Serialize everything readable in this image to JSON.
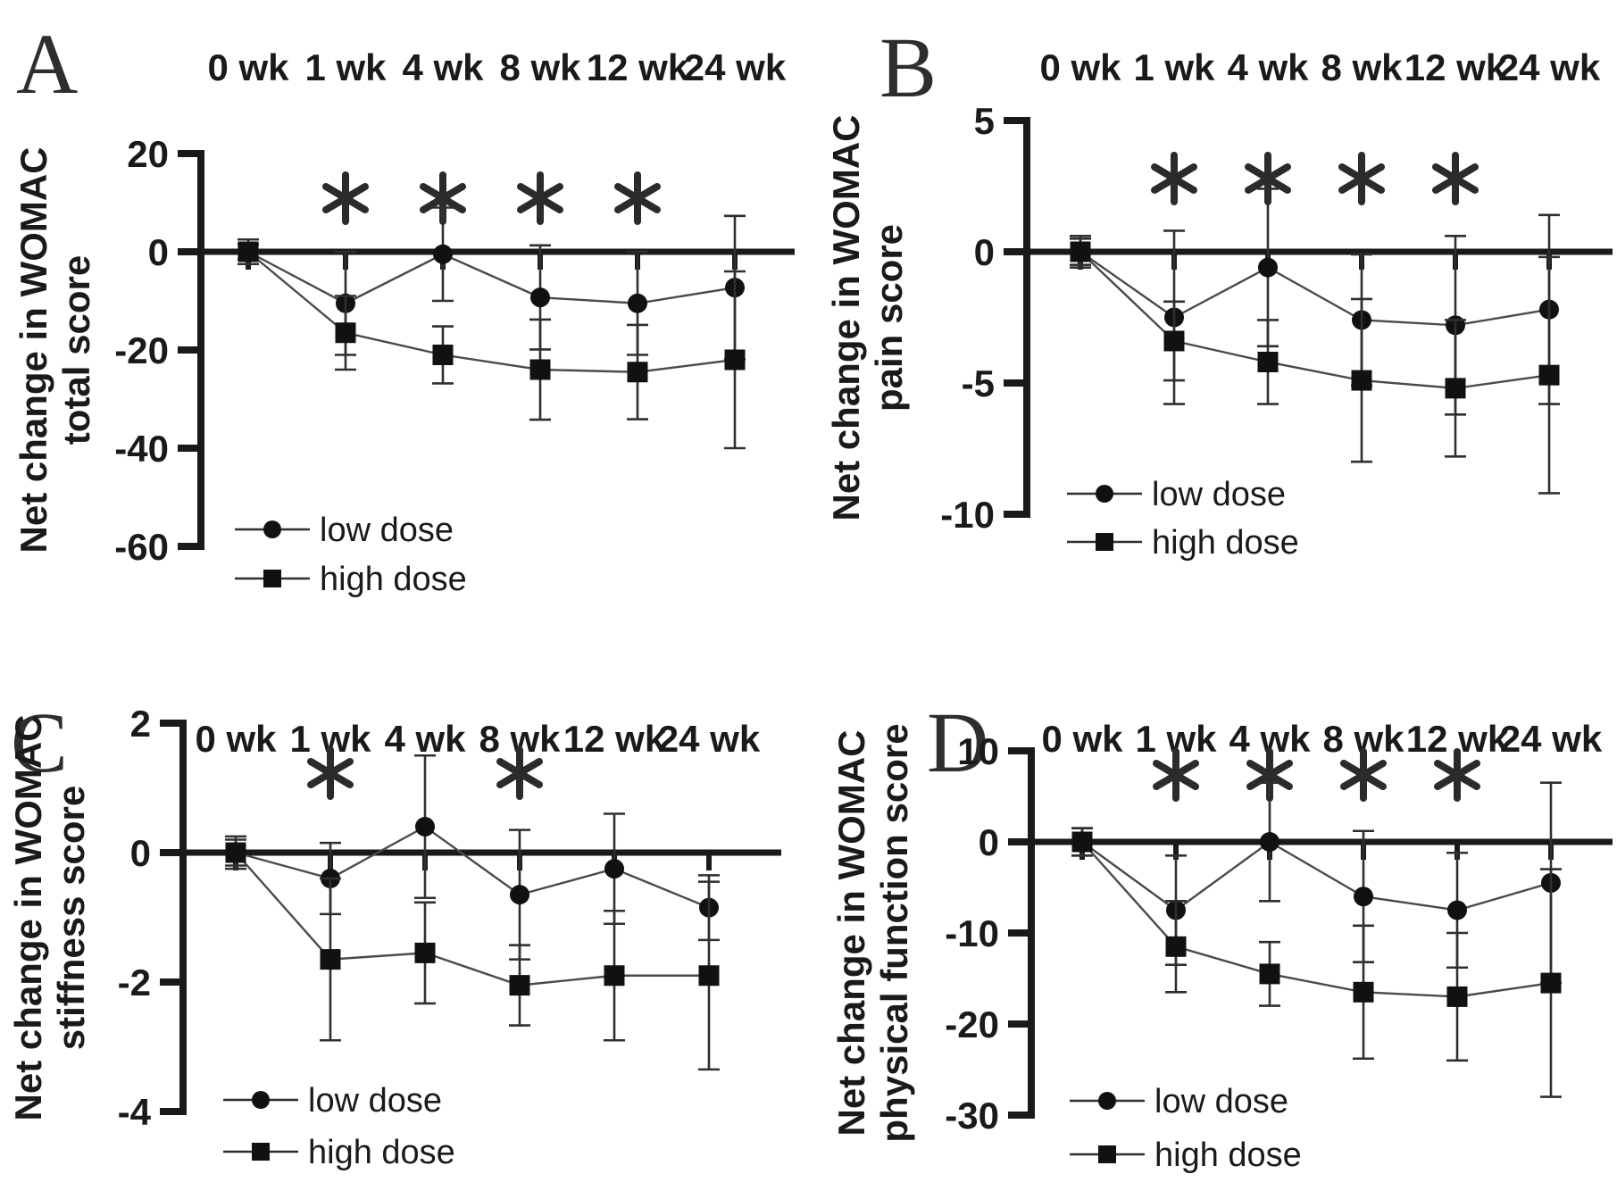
{
  "figure": {
    "background_color": "#ffffff",
    "axis_color": "#1a1a1a",
    "series_line_color": "#4a4a4a",
    "error_bar_color": "#2f2f2f",
    "marker_color": "#111111",
    "significance_symbol": "*"
  },
  "legend": {
    "items": [
      {
        "label": "low dose",
        "marker": "circle"
      },
      {
        "label": "high dose",
        "marker": "square"
      }
    ]
  },
  "chart_data": [
    {
      "panel": "A",
      "type": "line",
      "ylabel_lines": [
        "Net change in WOMAC",
        "total score"
      ],
      "x_categories": [
        "0 wk",
        "1 wk",
        "4 wk",
        "8 wk",
        "12 wk",
        "24 wk"
      ],
      "x_weeks": [
        0,
        1,
        4,
        8,
        12,
        24
      ],
      "yticks": [
        20,
        0,
        -20,
        -40,
        -60
      ],
      "ylim": [
        20,
        -60
      ],
      "significant_weeks": [
        "1 wk",
        "4 wk",
        "8 wk",
        "12 wk"
      ],
      "legend_position": "bottom-left",
      "series": [
        {
          "name": "low dose",
          "marker": "circle",
          "values": [
            0,
            -10.5,
            -0.5,
            -9.3,
            -10.5,
            -7.3
          ],
          "errors": [
            1.5,
            10.5,
            9.5,
            10.6,
            10.5,
            14.6
          ]
        },
        {
          "name": "high dose",
          "marker": "square",
          "values": [
            0,
            -16.5,
            -21,
            -24,
            -24.5,
            -22
          ],
          "errors": [
            2.5,
            7.5,
            5.8,
            10.2,
            9.6,
            18
          ]
        }
      ]
    },
    {
      "panel": "B",
      "type": "line",
      "ylabel_lines": [
        "Net change in WOMAC",
        "pain score"
      ],
      "x_categories": [
        "0 wk",
        "1 wk",
        "4 wk",
        "8 wk",
        "12 wk",
        "24 wk"
      ],
      "x_weeks": [
        0,
        1,
        4,
        8,
        12,
        24
      ],
      "yticks": [
        5,
        0,
        -5,
        -10
      ],
      "ylim": [
        5,
        -10
      ],
      "significant_weeks": [
        "1 wk",
        "4 wk",
        "8 wk",
        "12 wk"
      ],
      "legend_position": "bottom-left",
      "series": [
        {
          "name": "low dose",
          "marker": "circle",
          "values": [
            0,
            -2.5,
            -0.6,
            -2.6,
            -2.8,
            -2.2
          ],
          "errors": [
            0.5,
            3.3,
            3.0,
            2.5,
            3.4,
            3.6
          ]
        },
        {
          "name": "high dose",
          "marker": "square",
          "values": [
            0,
            -3.4,
            -4.2,
            -4.9,
            -5.2,
            -4.7
          ],
          "errors": [
            0.6,
            1.5,
            1.6,
            3.1,
            2.6,
            4.5
          ]
        }
      ]
    },
    {
      "panel": "C",
      "type": "line",
      "ylabel_lines": [
        "Net change in WOMAC",
        "stiffness score"
      ],
      "x_categories": [
        "0 wk",
        "1 wk",
        "4 wk",
        "8 wk",
        "12 wk",
        "24 wk"
      ],
      "x_weeks": [
        0,
        1,
        4,
        8,
        12,
        24
      ],
      "yticks": [
        2,
        0,
        -2,
        -4
      ],
      "ylim": [
        2,
        -4
      ],
      "significant_weeks": [
        "1 wk",
        "8 wk"
      ],
      "legend_position": "bottom-left",
      "series": [
        {
          "name": "low dose",
          "marker": "circle",
          "values": [
            0,
            -0.4,
            0.4,
            -0.65,
            -0.25,
            -0.85
          ],
          "errors": [
            0.2,
            0.55,
            1.1,
            1.0,
            0.85,
            0.5
          ]
        },
        {
          "name": "high dose",
          "marker": "square",
          "values": [
            0,
            -1.65,
            -1.55,
            -2.05,
            -1.9,
            -1.9
          ],
          "errors": [
            0.25,
            1.25,
            0.78,
            0.62,
            1.0,
            1.45
          ]
        }
      ]
    },
    {
      "panel": "D",
      "type": "line",
      "ylabel_lines": [
        "Net change in WOMAC",
        "physical function score"
      ],
      "x_categories": [
        "0 wk",
        "1 wk",
        "4 wk",
        "8 wk",
        "12 wk",
        "24 wk"
      ],
      "x_weeks": [
        0,
        1,
        4,
        8,
        12,
        24
      ],
      "yticks": [
        10,
        0,
        -10,
        -20,
        -30
      ],
      "ylim": [
        10,
        -30
      ],
      "significant_weeks": [
        "1 wk",
        "4 wk",
        "8 wk",
        "12 wk"
      ],
      "legend_position": "bottom-left",
      "series": [
        {
          "name": "low dose",
          "marker": "circle",
          "values": [
            0,
            -7.5,
            0,
            -6,
            -7.5,
            -4.5
          ],
          "errors": [
            1.5,
            6,
            6.5,
            7.2,
            6.3,
            11
          ]
        },
        {
          "name": "high dose",
          "marker": "square",
          "values": [
            0,
            -11.5,
            -14.5,
            -16.5,
            -17,
            -15.5
          ],
          "errors": [
            1.5,
            5,
            3.5,
            7.3,
            7,
            12.5
          ]
        }
      ]
    }
  ]
}
